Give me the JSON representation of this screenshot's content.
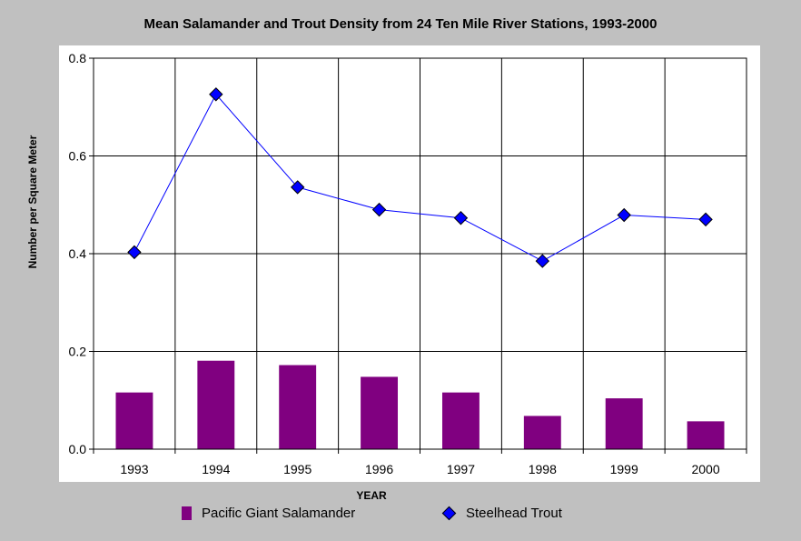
{
  "chart_data": {
    "type": "bar",
    "title": "Mean Salamander and Trout Density from 24 Ten Mile River Stations, 1993-2000",
    "xlabel": "YEAR",
    "ylabel": "Number per Square Meter",
    "ylim": [
      0,
      0.8
    ],
    "yticks": [
      "0.0",
      "0.2",
      "0.4",
      "0.6",
      "0.8"
    ],
    "grid": true,
    "legend_position": "bottom",
    "categories": [
      "1993",
      "1994",
      "1995",
      "1996",
      "1997",
      "1998",
      "1999",
      "2000"
    ],
    "series": [
      {
        "name": "Pacific Giant Salamander",
        "type": "bar",
        "color": "#800080",
        "values": [
          0.116,
          0.181,
          0.172,
          0.148,
          0.116,
          0.068,
          0.104,
          0.057
        ]
      },
      {
        "name": "Steelhead Trout",
        "type": "line",
        "marker": "diamond",
        "color": "#0000ff",
        "values": [
          0.403,
          0.726,
          0.536,
          0.49,
          0.473,
          0.385,
          0.479,
          0.47
        ]
      }
    ]
  }
}
